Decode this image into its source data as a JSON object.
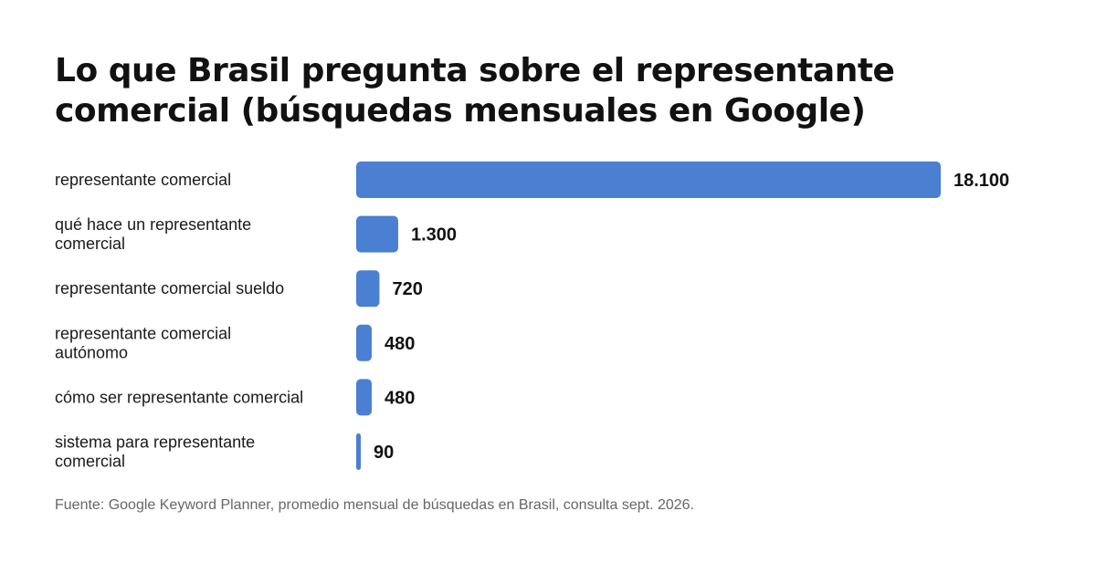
{
  "chart_data": {
    "type": "bar",
    "orientation": "horizontal",
    "title": "Lo que Brasil pregunta sobre el representante comercial (búsquedas mensuales en Google)",
    "categories": [
      "representante comercial",
      "qué hace un representante comercial",
      "representante comercial sueldo",
      "representante comercial autónomo",
      "cómo ser representante comercial",
      "sistema para representante comercial"
    ],
    "category_lines": [
      [
        "representante comercial"
      ],
      [
        "qué hace un representante",
        "comercial"
      ],
      [
        "representante comercial sueldo"
      ],
      [
        "representante comercial",
        "autónomo"
      ],
      [
        "cómo ser representante comercial"
      ],
      [
        "sistema para representante",
        "comercial"
      ]
    ],
    "values": [
      18100,
      1300,
      720,
      480,
      480,
      90
    ],
    "value_labels": [
      "18.100",
      "1.300",
      "720",
      "480",
      "480",
      "90"
    ],
    "xlim": [
      0,
      18100
    ],
    "grid": false,
    "legend": "none",
    "bar_color": "#4a7fd1",
    "source": "Fuente: Google Keyword Planner, promedio mensual de búsquedas en Brasil, consulta sept. 2026."
  }
}
